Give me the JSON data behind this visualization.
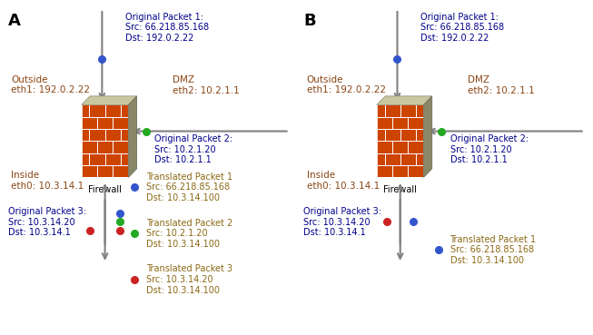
{
  "bg_color": "#ffffff",
  "text_color_label": "#8B4513",
  "text_color_blue": "#00008B",
  "text_color_packet": "#8B6914",
  "firewall_brick": "#CC4400",
  "firewall_top": "#C8C8A0",
  "firewall_side": "#888866",
  "panel_A": {
    "label": "A",
    "outside_label": "Outside\neth1: 192.0.2.22",
    "dmz_label": "DMZ\neth2: 10.2.1.1",
    "inside_label": "Inside\neth0: 10.3.14.1",
    "firewall_label": "Firewall",
    "orig_pkt1": "Original Packet 1:\nSrc: 66.218.85.168\nDst: 192.0.2.22",
    "orig_pkt2": "Original Packet 2:\nSrc: 10.2.1.20\nDst: 10.2.1.1",
    "orig_pkt3": "Original Packet 3:\nSrc: 10.3.14.20\nDst: 10.3.14.1",
    "trans_pkt1": "Translated Packet 1\nSrc: 66.218.85.168\nDst: 10.3.14.100",
    "trans_pkt2": "Translated Packet 2\nSrc: 10.2.1.20\nDst: 10.3.14.100",
    "trans_pkt3": "Translated Packet 3\nSrc: 10.3.14.20\nDst: 10.3.14.100",
    "show_all_translated": true
  },
  "panel_B": {
    "label": "B",
    "outside_label": "Outside\neth1: 192.0.2.22",
    "dmz_label": "DMZ\neth2: 10.2.1.1",
    "inside_label": "Inside\neth0: 10.3.14.1",
    "firewall_label": "Firewall",
    "orig_pkt1": "Original Packet 1:\nSrc: 66.218.85.168\nDst: 192.0.2.22",
    "orig_pkt2": "Original Packet 2:\nSrc: 10.2.1.20\nDst: 10.2.1.1",
    "orig_pkt3": "Original Packet 3:\nSrc: 10.3.14.20\nDst: 10.3.14.1",
    "trans_pkt1": "Translated Packet 1\nSrc: 66.218.85.168\nDst: 10.3.14.100",
    "show_all_translated": false
  }
}
